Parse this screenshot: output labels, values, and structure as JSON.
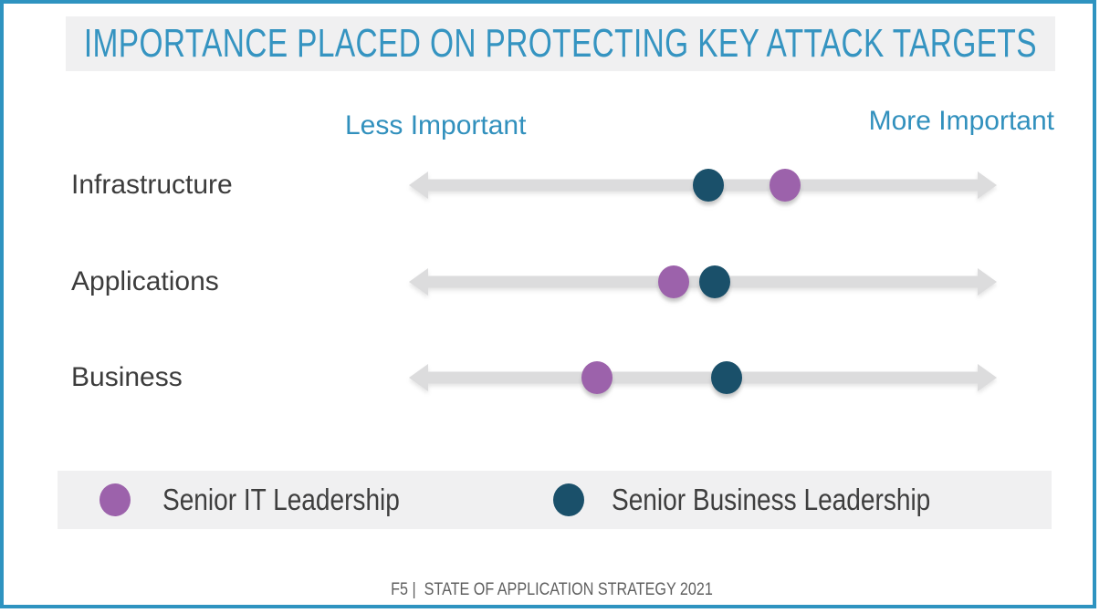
{
  "title": "IMPORTANCE PLACED ON PROTECTING KEY ATTACK TARGETS",
  "footer": {
    "text": "F5 |  STATE OF APPLICATION STRATEGY 2021"
  },
  "colors": {
    "accent_blue": "#3594c1",
    "border_blue": "#2e93c0",
    "band_gray": "#f0f0f1",
    "arrow_gray": "#dcdcdd",
    "purple": "#9c62ab",
    "teal": "#1a506a"
  },
  "chart_data": {
    "type": "scatter",
    "subtype": "horizontal-dot-plot",
    "title": "IMPORTANCE PLACED ON PROTECTING KEY ATTACK TARGETS",
    "xlabel_left": "Less Important",
    "xlabel_right": "More Important",
    "xlim": [
      0,
      1
    ],
    "grid": false,
    "legend_position": "bottom",
    "categories": [
      "Infrastructure",
      "Applications",
      "Business"
    ],
    "series": [
      {
        "name": "Senior IT Leadership",
        "color": "#9c62ab",
        "values": [
          0.64,
          0.45,
          0.32
        ]
      },
      {
        "name": "Senior Business Leadership",
        "color": "#1a506a",
        "values": [
          0.51,
          0.52,
          0.54
        ]
      }
    ]
  }
}
